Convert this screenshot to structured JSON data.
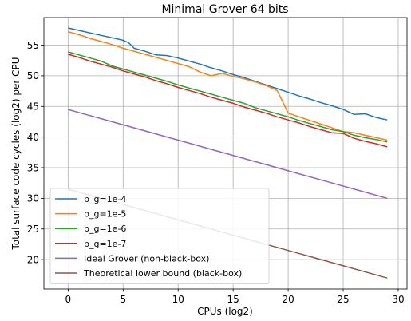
{
  "chart_data": {
    "type": "line",
    "title": "Minimal Grover 64 bits",
    "xlabel": "CPUs (log2)",
    "ylabel": "Total surface code cycles (log2) per CPU",
    "xlim": [
      -2.2,
      30.8
    ],
    "ylim": [
      15.2,
      59.5
    ],
    "xticks": [
      0,
      5,
      10,
      15,
      20,
      25,
      30
    ],
    "yticks": [
      20,
      25,
      30,
      35,
      40,
      45,
      50,
      55
    ],
    "grid": true,
    "legend_position": "lower-left",
    "series": [
      {
        "name": "p_g=1e-4",
        "color": "#1f77b4",
        "points": [
          [
            0,
            57.8
          ],
          [
            1,
            57.4
          ],
          [
            2,
            57.0
          ],
          [
            3,
            56.6
          ],
          [
            4,
            56.2
          ],
          [
            5,
            55.8
          ],
          [
            5.5,
            55.4
          ],
          [
            6,
            54.5
          ],
          [
            7,
            54.0
          ],
          [
            8,
            53.4
          ],
          [
            9,
            53.3
          ],
          [
            10,
            52.9
          ],
          [
            11,
            52.4
          ],
          [
            12,
            51.9
          ],
          [
            13,
            51.3
          ],
          [
            14,
            50.8
          ],
          [
            15,
            50.2
          ],
          [
            16,
            49.7
          ],
          [
            17,
            49.1
          ],
          [
            18,
            48.5
          ],
          [
            19,
            47.9
          ],
          [
            20,
            47.3
          ],
          [
            21,
            46.7
          ],
          [
            22,
            46.2
          ],
          [
            23,
            45.6
          ],
          [
            24,
            45.1
          ],
          [
            25,
            44.5
          ],
          [
            26,
            43.7
          ],
          [
            27,
            43.8
          ],
          [
            28,
            43.2
          ],
          [
            29,
            42.8
          ]
        ]
      },
      {
        "name": "p_g=1e-5",
        "color": "#ff7f0e",
        "points": [
          [
            0,
            57.2
          ],
          [
            1,
            56.7
          ],
          [
            2,
            56.1
          ],
          [
            3,
            55.6
          ],
          [
            4,
            55.1
          ],
          [
            5,
            54.5
          ],
          [
            6,
            54.0
          ],
          [
            7,
            53.5
          ],
          [
            8,
            53.0
          ],
          [
            9,
            52.5
          ],
          [
            10,
            52.0
          ],
          [
            11,
            51.5
          ],
          [
            12,
            50.6
          ],
          [
            13,
            50.0
          ],
          [
            14,
            50.4
          ],
          [
            15,
            49.9
          ],
          [
            16,
            49.5
          ],
          [
            17,
            49.0
          ],
          [
            18,
            48.4
          ],
          [
            19,
            47.6
          ],
          [
            20,
            43.9
          ],
          [
            21,
            43.3
          ],
          [
            22,
            42.7
          ],
          [
            23,
            42.1
          ],
          [
            24,
            41.5
          ],
          [
            25,
            40.9
          ],
          [
            26,
            40.7
          ],
          [
            27,
            40.3
          ],
          [
            28,
            39.9
          ],
          [
            29,
            39.5
          ]
        ]
      },
      {
        "name": "p_g=1e-6",
        "color": "#2ca02c",
        "points": [
          [
            0,
            53.9
          ],
          [
            1,
            53.4
          ],
          [
            2,
            52.9
          ],
          [
            3,
            52.4
          ],
          [
            4,
            51.6
          ],
          [
            5,
            51.1
          ],
          [
            6,
            50.6
          ],
          [
            7,
            50.1
          ],
          [
            8,
            49.6
          ],
          [
            9,
            49.1
          ],
          [
            10,
            48.5
          ],
          [
            11,
            48.0
          ],
          [
            12,
            47.5
          ],
          [
            13,
            47.0
          ],
          [
            14,
            46.5
          ],
          [
            15,
            46.0
          ],
          [
            16,
            45.5
          ],
          [
            17,
            44.8
          ],
          [
            18,
            44.3
          ],
          [
            19,
            43.8
          ],
          [
            20,
            43.3
          ],
          [
            21,
            42.7
          ],
          [
            22,
            42.2
          ],
          [
            23,
            41.7
          ],
          [
            24,
            41.2
          ],
          [
            25,
            40.9
          ],
          [
            26,
            40.3
          ],
          [
            27,
            39.9
          ],
          [
            28,
            39.6
          ],
          [
            29,
            39.2
          ]
        ]
      },
      {
        "name": "p_g=1e-7",
        "color": "#d62728",
        "points": [
          [
            0,
            53.5
          ],
          [
            1,
            53.0
          ],
          [
            2,
            52.4
          ],
          [
            3,
            51.9
          ],
          [
            4,
            51.4
          ],
          [
            5,
            50.8
          ],
          [
            6,
            50.3
          ],
          [
            7,
            49.8
          ],
          [
            8,
            49.2
          ],
          [
            9,
            48.7
          ],
          [
            10,
            48.1
          ],
          [
            11,
            47.6
          ],
          [
            12,
            47.1
          ],
          [
            13,
            46.5
          ],
          [
            14,
            46.0
          ],
          [
            15,
            45.5
          ],
          [
            16,
            44.9
          ],
          [
            17,
            44.4
          ],
          [
            18,
            43.9
          ],
          [
            19,
            43.3
          ],
          [
            20,
            42.8
          ],
          [
            21,
            42.3
          ],
          [
            22,
            41.7
          ],
          [
            23,
            41.2
          ],
          [
            24,
            40.7
          ],
          [
            25,
            40.6
          ],
          [
            26,
            39.8
          ],
          [
            27,
            39.3
          ],
          [
            28,
            38.9
          ],
          [
            29,
            38.4
          ]
        ]
      },
      {
        "name": "Ideal Grover (non-black-box)",
        "color": "#9467bd",
        "points": [
          [
            0,
            44.5
          ],
          [
            29,
            30.0
          ]
        ]
      },
      {
        "name": "Theoretical lower bound (black-box)",
        "color": "#8c564b",
        "points": [
          [
            0,
            31.5
          ],
          [
            29,
            17.0
          ]
        ]
      }
    ]
  }
}
